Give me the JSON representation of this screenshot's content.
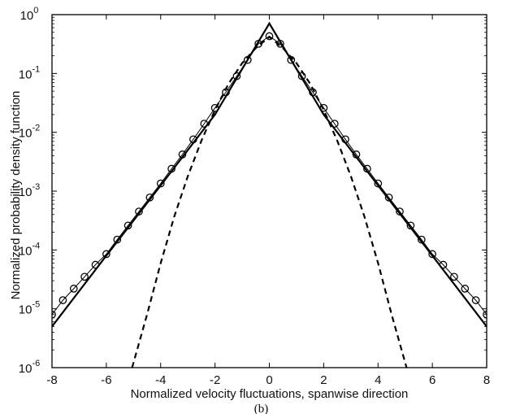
{
  "chart_data": {
    "type": "line",
    "title": "",
    "xlabel": "Normalized velocity fluctuations, spanwise direction",
    "ylabel": "Normalized probability density function",
    "panel_label": "(b)",
    "xlim": [
      -8,
      8
    ],
    "ylim": [
      1e-06,
      1
    ],
    "yscale": "log",
    "grid": false,
    "legend": "none",
    "x_ticks": [
      -8,
      -6,
      -4,
      -2,
      0,
      2,
      4,
      6,
      8
    ],
    "x_tick_labels": [
      "-8",
      "-6",
      "-4",
      "-2",
      "0",
      "2",
      "4",
      "6",
      "8"
    ],
    "y_ticks": [
      {
        "base": "10",
        "exp": "-6",
        "value": 1e-06
      },
      {
        "base": "10",
        "exp": "-5",
        "value": 1e-05
      },
      {
        "base": "10",
        "exp": "-4",
        "value": 0.0001
      },
      {
        "base": "10",
        "exp": "-3",
        "value": 0.001
      },
      {
        "base": "10",
        "exp": "-2",
        "value": 0.01
      },
      {
        "base": "10",
        "exp": "-1",
        "value": 0.1
      },
      {
        "base": "10",
        "exp": "0",
        "value": 1
      }
    ],
    "series": [
      {
        "style": "solid-thick",
        "x": [
          -8,
          -6,
          -4,
          -2,
          0,
          2,
          4,
          6,
          8
        ],
        "y": [
          5e-06,
          8e-05,
          0.00125,
          0.02,
          0.71,
          0.02,
          0.00125,
          8e-05,
          5e-06
        ]
      },
      {
        "style": "dashed",
        "x": [
          -5.05,
          -4.5,
          -4.0,
          -3.5,
          -3.0,
          -2.5,
          -2.0,
          -1.5,
          -1.0,
          -0.5,
          0,
          0.5,
          1.0,
          1.5,
          2.0,
          2.5,
          3.0,
          3.5,
          4.0,
          4.5,
          5.05
        ],
        "y": [
          1e-06,
          8e-06,
          6e-05,
          0.00037,
          0.0018,
          0.0072,
          0.024,
          0.067,
          0.15,
          0.27,
          0.42,
          0.27,
          0.15,
          0.067,
          0.024,
          0.0072,
          0.0018,
          0.00037,
          6e-05,
          8e-06,
          1e-06
        ]
      },
      {
        "style": "circles-thin-line",
        "x": [
          -8.0,
          -7.6,
          -7.2,
          -6.8,
          -6.4,
          -6.0,
          -5.6,
          -5.2,
          -4.8,
          -4.4,
          -4.0,
          -3.6,
          -3.2,
          -2.8,
          -2.4,
          -2.0,
          -1.6,
          -1.2,
          -0.8,
          -0.4,
          0.0,
          0.4,
          0.8,
          1.2,
          1.6,
          2.0,
          2.4,
          2.8,
          3.2,
          3.6,
          4.0,
          4.4,
          4.8,
          5.2,
          5.6,
          6.0,
          6.4,
          6.8,
          7.2,
          7.6,
          8.0
        ],
        "y": [
          8e-06,
          1.4e-05,
          2.2e-05,
          3.5e-05,
          5.6e-05,
          8.5e-05,
          0.00015,
          0.00026,
          0.00045,
          0.00078,
          0.00135,
          0.0024,
          0.0042,
          0.0076,
          0.014,
          0.026,
          0.048,
          0.09,
          0.17,
          0.32,
          0.43,
          0.32,
          0.17,
          0.09,
          0.048,
          0.026,
          0.014,
          0.0076,
          0.0042,
          0.0024,
          0.00135,
          0.00078,
          0.00045,
          0.00026,
          0.00015,
          8.5e-05,
          5.6e-05,
          3.5e-05,
          2.2e-05,
          1.4e-05,
          8e-06
        ]
      }
    ]
  }
}
